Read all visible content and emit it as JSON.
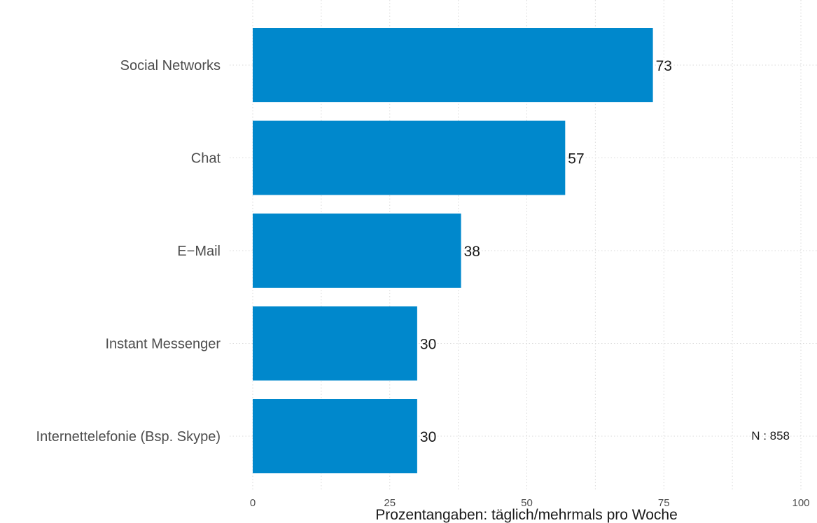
{
  "chart_data": {
    "type": "bar",
    "orientation": "horizontal",
    "categories": [
      "Social Networks",
      "Chat",
      "E−Mail",
      "Instant Messenger",
      "Internettelefonie (Bsp. Skype)"
    ],
    "values": [
      73,
      57,
      38,
      30,
      30
    ],
    "value_labels": [
      "73",
      "57",
      "38",
      "30",
      "30"
    ],
    "xlabel": "Prozentangaben: täglich/mehrmals pro Woche",
    "xlim": [
      0,
      100
    ],
    "xticks": [
      0,
      25,
      50,
      75,
      100
    ],
    "grid": true,
    "bar_color": "#0088cc",
    "note": "N : 858"
  }
}
